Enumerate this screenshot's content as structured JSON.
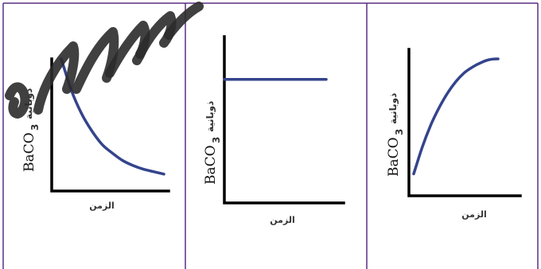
{
  "colors": {
    "curve": "#34448c",
    "axis": "#000000",
    "grid": "#5b2d86"
  },
  "chart_data": [
    {
      "type": "line",
      "title": "",
      "ylabel_main": "BaCO",
      "ylabel_sub": "3",
      "ylabel_arabic": "ذوبانية",
      "xlabel": "الزمن",
      "curve": "decreasing",
      "xlim": [
        0,
        10
      ],
      "ylim": [
        0,
        10
      ],
      "x": [
        0,
        1,
        2,
        3,
        4,
        5,
        6,
        7,
        8,
        9,
        10
      ],
      "y": [
        10.0,
        7.4,
        5.5,
        4.1,
        3.0,
        2.3,
        1.7,
        1.3,
        1.0,
        0.8,
        0.6
      ]
    },
    {
      "type": "line",
      "title": "",
      "ylabel_main": "BaCO",
      "ylabel_sub": "3",
      "ylabel_arabic": "ذوبانية",
      "xlabel": "الزمن",
      "curve": "constant",
      "xlim": [
        0,
        10
      ],
      "ylim": [
        0,
        10
      ],
      "x": [
        0,
        10
      ],
      "y": [
        7.5,
        7.5
      ]
    },
    {
      "type": "line",
      "title": "",
      "ylabel_main": "BaCO",
      "ylabel_sub": "3",
      "ylabel_arabic": "ذوبانية",
      "xlabel": "الزمن",
      "curve": "increasing",
      "xlim": [
        0,
        10
      ],
      "ylim": [
        0,
        10
      ],
      "x": [
        0,
        1,
        2,
        3,
        4,
        5,
        6,
        7,
        8,
        9,
        10
      ],
      "y": [
        1.5,
        3.3,
        4.8,
        6.0,
        7.0,
        7.8,
        8.4,
        8.8,
        9.1,
        9.3,
        9.35
      ]
    }
  ]
}
